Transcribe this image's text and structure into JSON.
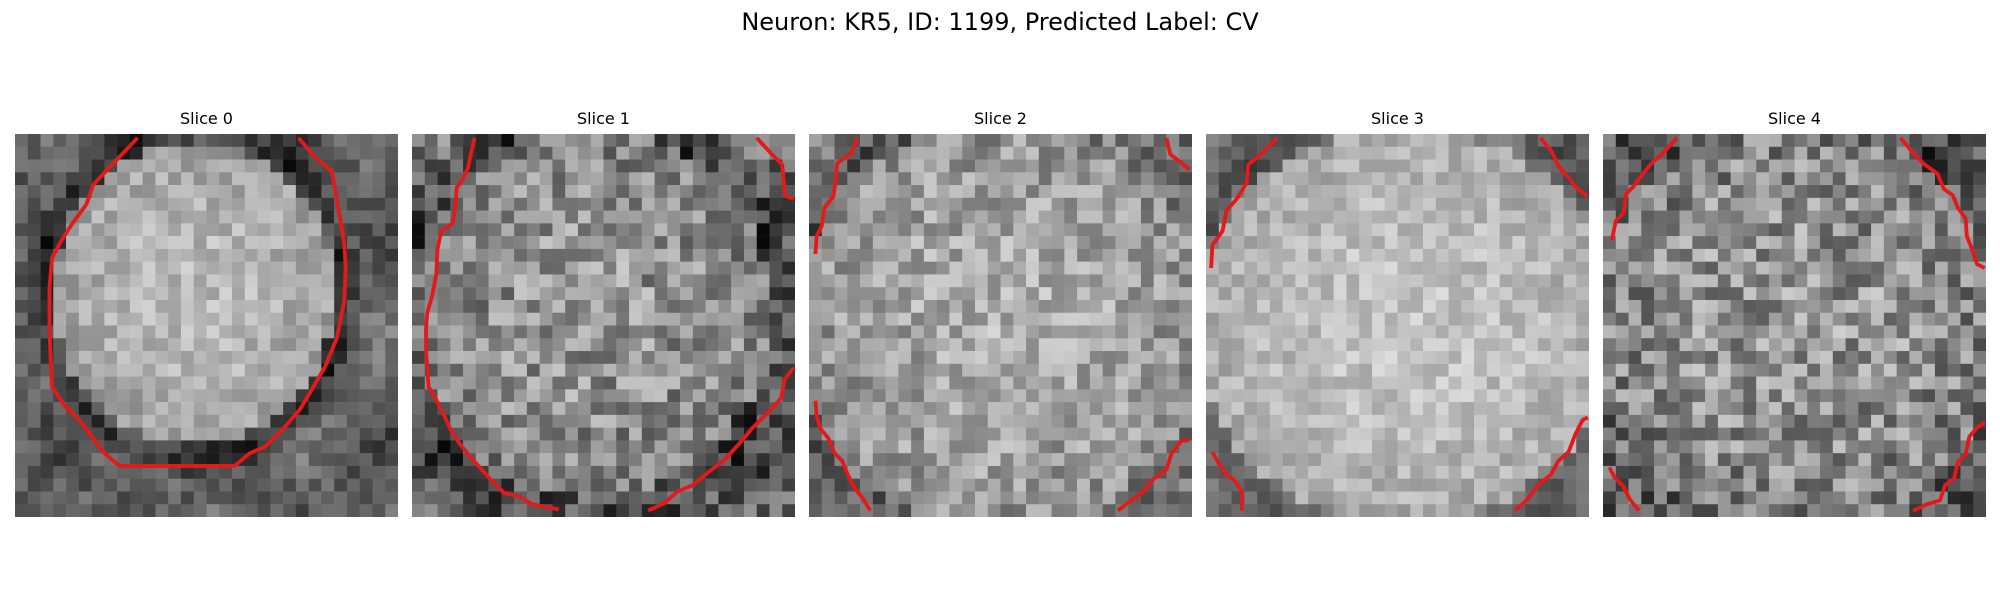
{
  "figure": {
    "title": "Neuron: KR5, ID: 1199, Predicted Label: CV"
  },
  "panels": [
    {
      "title": "Slice 0"
    },
    {
      "title": "Slice 1"
    },
    {
      "title": "Slice 2"
    },
    {
      "title": "Slice 3"
    },
    {
      "title": "Slice 4"
    }
  ],
  "colors": {
    "contour": "#e31a1c",
    "background": "#ffffff"
  }
}
